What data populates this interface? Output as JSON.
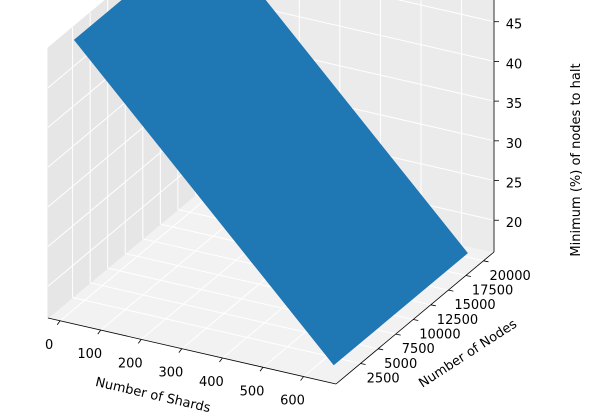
{
  "chart_data": {
    "type": "surface3d",
    "title": "",
    "xlabel": "Number of Shards",
    "ylabel": "Number of Nodes",
    "zlabel": "Minimum (%) of nodes to halt",
    "xlim": [
      -30,
      680
    ],
    "ylim": [
      -1000,
      21500
    ],
    "zlim": [
      16,
      50
    ],
    "x_ticks": [
      "0",
      "100",
      "200",
      "300",
      "400",
      "500",
      "600"
    ],
    "y_ticks": [
      "2500",
      "5000",
      "7500",
      "10000",
      "12500",
      "15000",
      "17500",
      "20000"
    ],
    "z_ticks": [
      "20",
      "25",
      "30",
      "35",
      "40",
      "45"
    ],
    "surface_corners": [
      {
        "x": 1,
        "y": 1000,
        "z": 49.9
      },
      {
        "x": 640,
        "y": 1000,
        "z": 16.5
      },
      {
        "x": 640,
        "y": 20000,
        "z": 16.5
      },
      {
        "x": 1,
        "y": 20000,
        "z": 49.9
      }
    ],
    "surface_color": "#1f77b4",
    "grid": true,
    "pane_color": "#ebebeb"
  }
}
